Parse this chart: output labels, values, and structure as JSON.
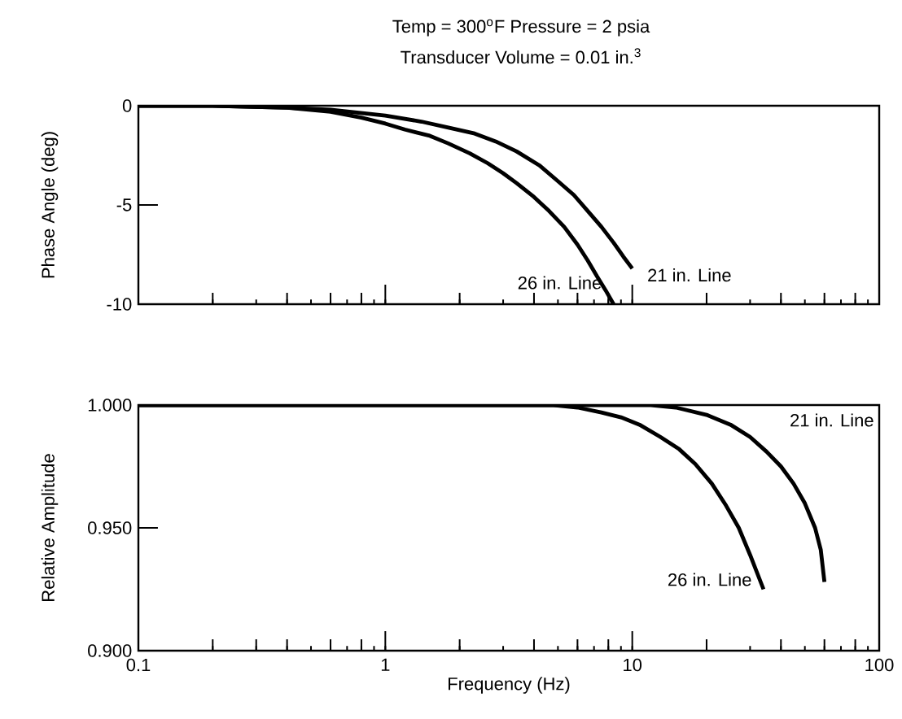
{
  "chart_data": [
    {
      "type": "line",
      "title": "Temp = 300$^{o}$F   Pressure = 2 psia",
      "subtitle": "Transducer Volume = 0.01 in.$^{3}$",
      "ylabel": "Phase Angle (deg)",
      "log": "x",
      "xlim": [
        0.1,
        100
      ],
      "ylim": [
        -10,
        0
      ],
      "xticks": [
        0.1,
        {
          "value": 0.2,
          "label": null
        },
        {
          "value": 0.4,
          "label": null
        },
        {
          "value": 0.6,
          "label": null
        },
        {
          "value": 0.8,
          "label": null
        },
        1,
        {
          "value": 2,
          "label": null
        },
        {
          "value": 4,
          "label": null
        },
        {
          "value": 6,
          "label": null
        },
        {
          "value": 8,
          "label": null
        },
        10,
        {
          "value": 20,
          "label": null
        },
        {
          "value": 40,
          "label": null
        },
        {
          "value": 60,
          "label": null
        },
        {
          "value": 80,
          "label": null
        },
        100
      ],
      "yticks": [
        0,
        -5,
        -10
      ],
      "tick_labels": "y",
      "marker": "none",
      "line_style": "solid",
      "series": [
        {
          "name": "26 in. Line",
          "color": "#000000",
          "x": [
            0.1,
            0.2,
            0.4,
            0.6,
            0.8,
            1.0,
            1.2,
            1.5,
            1.8,
            2.2,
            2.6,
            3.0,
            3.4,
            4.0,
            4.6,
            5.3,
            6.0,
            6.6,
            7.2,
            7.8,
            8.4
          ],
          "values": [
            0,
            0,
            -0.1,
            -0.3,
            -0.6,
            -0.9,
            -1.2,
            -1.5,
            -1.9,
            -2.4,
            -2.9,
            -3.4,
            -3.9,
            -4.6,
            -5.3,
            -6.1,
            -7.0,
            -7.8,
            -8.6,
            -9.3,
            -10
          ]
        },
        {
          "name": "21 in. Line",
          "color": "#000000",
          "x": [
            0.1,
            0.2,
            0.4,
            0.6,
            1.0,
            1.4,
            1.8,
            2.3,
            2.8,
            3.4,
            4.2,
            5.0,
            5.8,
            6.6,
            7.5,
            8.4,
            9.2,
            10
          ],
          "values": [
            0,
            0,
            -0.1,
            -0.2,
            -0.5,
            -0.8,
            -1.1,
            -1.4,
            -1.8,
            -2.3,
            -3.0,
            -3.8,
            -4.5,
            -5.3,
            -6.1,
            -6.9,
            -7.6,
            -8.2
          ]
        }
      ]
    },
    {
      "type": "line",
      "xlabel": "Frequency (Hz)",
      "ylabel": "Relative Amplitude",
      "log": "x",
      "xlim": [
        0.1,
        100
      ],
      "ylim": [
        0.9,
        1.0
      ],
      "xticks": [
        0.1,
        {
          "value": 0.2,
          "label": null
        },
        {
          "value": 0.3,
          "label": null
        },
        {
          "value": 0.4,
          "label": null
        },
        {
          "value": 0.6,
          "label": null
        },
        {
          "value": 0.8,
          "label": null
        },
        1,
        {
          "value": 2,
          "label": null
        },
        {
          "value": 4,
          "label": null
        },
        {
          "value": 6,
          "label": null
        },
        {
          "value": 8,
          "label": null
        },
        10,
        {
          "value": 20,
          "label": null
        },
        {
          "value": 40,
          "label": null
        },
        {
          "value": 60,
          "label": null
        },
        {
          "value": 80,
          "label": null
        },
        100
      ],
      "yticks": [
        {
          "value": 1.0,
          "label": "1.000"
        },
        {
          "value": 0.95,
          "label": "0.950"
        },
        {
          "value": 0.9,
          "label": "0.900"
        }
      ],
      "marker": "none",
      "line_style": "solid",
      "series": [
        {
          "name": "26 in. Line",
          "color": "#000000",
          "x": [
            0.1,
            4.8,
            6,
            7.5,
            9,
            10.7,
            13,
            15.5,
            18,
            21,
            24,
            27,
            30,
            34
          ],
          "values": [
            1.0,
            1.0,
            0.999,
            0.997,
            0.995,
            0.992,
            0.987,
            0.982,
            0.976,
            0.968,
            0.959,
            0.95,
            0.939,
            0.925
          ]
        },
        {
          "name": "21 in. Line",
          "color": "#000000",
          "x": [
            0.1,
            11.9,
            15,
            20,
            25,
            30,
            35,
            40,
            45,
            50,
            55,
            58,
            60
          ],
          "values": [
            1.0,
            1.0,
            0.999,
            0.996,
            0.992,
            0.987,
            0.981,
            0.975,
            0.968,
            0.96,
            0.95,
            0.941,
            0.928
          ]
        }
      ]
    }
  ]
}
